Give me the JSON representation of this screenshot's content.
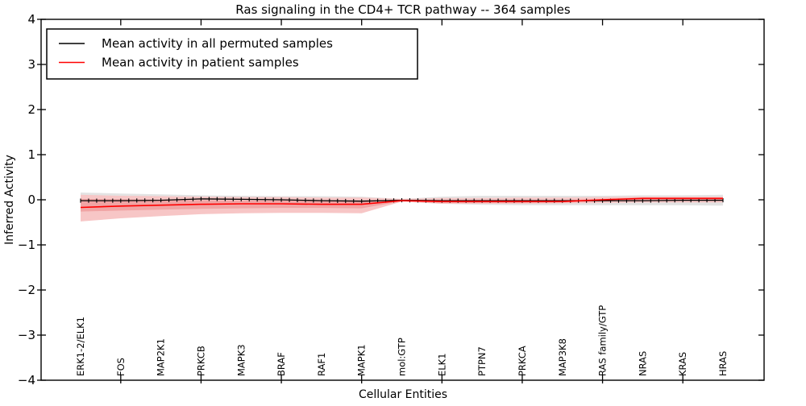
{
  "chart_data": {
    "type": "line",
    "title": "Ras signaling in the CD4+ TCR pathway -- 364 samples",
    "xlabel": "Cellular Entities",
    "ylabel": "Inferred Activity",
    "ylim": [
      -4,
      4
    ],
    "yticks": [
      4,
      3,
      2,
      1,
      0,
      -1,
      -2,
      -3,
      -4
    ],
    "grid": false,
    "legend_position": "upper left",
    "categories": [
      "ERK1-2/ELK1",
      "FOS",
      "MAP2K1",
      "PRKCB",
      "MAPK3",
      "BRAF",
      "RAF1",
      "MAPK1",
      "mol:GTP",
      "ELK1",
      "PTPN7",
      "PRKCA",
      "MAP3K8",
      "RAS family/GTP",
      "NRAS",
      "KRAS",
      "HRAS"
    ],
    "series": [
      {
        "name": "Mean activity in all permuted samples",
        "color": "#000000",
        "has_error_ticks": true,
        "values": [
          -0.02,
          -0.02,
          -0.01,
          0.02,
          0.01,
          0.0,
          -0.02,
          -0.03,
          -0.01,
          -0.02,
          -0.02,
          -0.02,
          -0.02,
          -0.02,
          -0.02,
          -0.01,
          -0.01
        ]
      },
      {
        "name": "Mean activity in patient samples",
        "color": "#ff0000",
        "has_error_ticks": false,
        "values": [
          -0.17,
          -0.14,
          -0.12,
          -0.1,
          -0.09,
          -0.09,
          -0.1,
          -0.1,
          -0.02,
          -0.04,
          -0.04,
          -0.04,
          -0.04,
          0.0,
          0.03,
          0.03,
          0.03
        ]
      }
    ],
    "bands": [
      {
        "name": "permuted-samples-range",
        "color": "#e3e3e3",
        "upper": [
          0.16,
          0.14,
          0.12,
          0.1,
          0.09,
          0.08,
          0.08,
          0.07,
          0.02,
          0.07,
          0.09,
          0.09,
          0.09,
          0.09,
          0.1,
          0.1,
          0.11
        ],
        "lower": [
          -0.12,
          -0.11,
          -0.1,
          -0.09,
          -0.09,
          -0.08,
          -0.08,
          -0.08,
          -0.04,
          -0.09,
          -0.11,
          -0.12,
          -0.12,
          -0.12,
          -0.12,
          -0.12,
          -0.13
        ]
      },
      {
        "name": "patient-samples-outer-range",
        "color": "#f7c6c6",
        "upper": [
          0.11,
          0.09,
          0.08,
          0.07,
          0.06,
          0.06,
          0.05,
          0.05,
          0.02,
          0.04,
          0.04,
          0.05,
          0.05,
          0.06,
          0.07,
          0.07,
          0.07
        ],
        "lower": [
          -0.48,
          -0.41,
          -0.36,
          -0.32,
          -0.3,
          -0.29,
          -0.29,
          -0.3,
          -0.04,
          -0.09,
          -0.09,
          -0.09,
          -0.08,
          -0.07,
          -0.06,
          -0.06,
          -0.06
        ]
      },
      {
        "name": "patient-samples-inner-range",
        "color": "#f0a4a4",
        "upper": [
          0.02,
          0.01,
          0.0,
          -0.01,
          -0.02,
          -0.02,
          -0.03,
          -0.03,
          0.0,
          -0.01,
          -0.01,
          -0.01,
          -0.01,
          0.02,
          0.05,
          0.05,
          0.05
        ],
        "lower": [
          -0.26,
          -0.24,
          -0.22,
          -0.2,
          -0.19,
          -0.18,
          -0.18,
          -0.19,
          -0.03,
          -0.07,
          -0.07,
          -0.07,
          -0.06,
          -0.03,
          0.0,
          0.0,
          0.0
        ]
      }
    ]
  },
  "legend": {
    "items": [
      {
        "label": "Mean activity in all permuted samples",
        "color": "#000000"
      },
      {
        "label": "Mean activity in patient samples",
        "color": "#ff0000"
      }
    ]
  }
}
